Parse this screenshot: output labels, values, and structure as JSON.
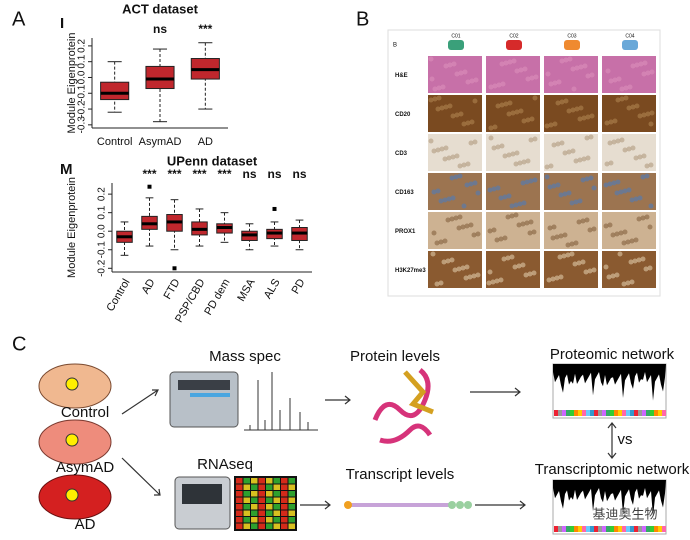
{
  "chart_data": [
    {
      "type": "box",
      "panel": "I",
      "title": "ACT dataset",
      "ylabel": "Module Eigenprotein",
      "color": "#c0272d",
      "categories": [
        "Control",
        "AsymAD",
        "AD"
      ],
      "min": [
        -0.22,
        -0.28,
        -0.2
      ],
      "q1": [
        -0.14,
        -0.07,
        -0.01
      ],
      "median": [
        -0.1,
        -0.01,
        0.05
      ],
      "q3": [
        -0.03,
        0.07,
        0.12
      ],
      "max": [
        0.1,
        0.18,
        0.22
      ],
      "annotations": [
        null,
        "ns",
        "***"
      ],
      "ylim": [
        -0.32,
        0.25
      ],
      "yticks": [
        -0.3,
        -0.2,
        -0.1,
        {
          "value": 0,
          "label": "0.0"
        },
        0.1,
        0.2
      ],
      "rotate_labels": false
    },
    {
      "type": "box",
      "panel": "M",
      "title": "UPenn dataset",
      "ylabel": "Module Eigenprotein",
      "color": "#c0272d",
      "categories": [
        "Control",
        "AD",
        "FTD",
        "PSP/CBD",
        "PD dem",
        "MSA",
        "ALS",
        "PD"
      ],
      "min": [
        -0.13,
        -0.08,
        -0.1,
        -0.08,
        -0.06,
        -0.1,
        -0.08,
        -0.1
      ],
      "q1": [
        -0.06,
        0.01,
        0.0,
        -0.02,
        -0.01,
        -0.05,
        -0.04,
        -0.05
      ],
      "median": [
        -0.03,
        0.04,
        0.05,
        0.01,
        0.02,
        -0.02,
        -0.01,
        -0.01
      ],
      "q3": [
        0.0,
        0.08,
        0.09,
        0.05,
        0.04,
        0.0,
        0.01,
        0.02
      ],
      "max": [
        0.05,
        0.18,
        0.17,
        0.12,
        0.1,
        0.04,
        0.05,
        0.06
      ],
      "outliers": [
        [],
        [
          0.24
        ],
        [
          -0.2
        ],
        [],
        [],
        [],
        [
          0.12
        ],
        []
      ],
      "annotations": [
        null,
        "***",
        "***",
        "***",
        "***",
        "ns",
        "ns",
        "ns"
      ],
      "ylim": [
        -0.22,
        0.26
      ],
      "yticks": [
        -0.2,
        -0.1,
        {
          "value": 0,
          "label": "0.0"
        },
        0.1,
        0.2
      ],
      "rotate_labels": true
    }
  ],
  "panel_letters": [
    "A",
    "B",
    "C"
  ],
  "histology": {
    "label": "B",
    "columns": [
      "C01",
      "C02",
      "C03",
      "C04"
    ],
    "rows": [
      "H&E",
      "CD20",
      "CD3",
      "CD163",
      "PROX1",
      "H3K27me3"
    ]
  },
  "schematic": {
    "groups": [
      "Control",
      "AsymAD",
      "AD"
    ],
    "mass_spec": "Mass spec",
    "rnaseq": "RNAseq",
    "protein_levels": "Protein levels",
    "transcript_levels": "Transcript levels",
    "proteomic_network": "Proteomic network",
    "transcriptomic_network": "Transcriptomic network",
    "vs": "vs",
    "watermark": "基迪奥生物"
  }
}
